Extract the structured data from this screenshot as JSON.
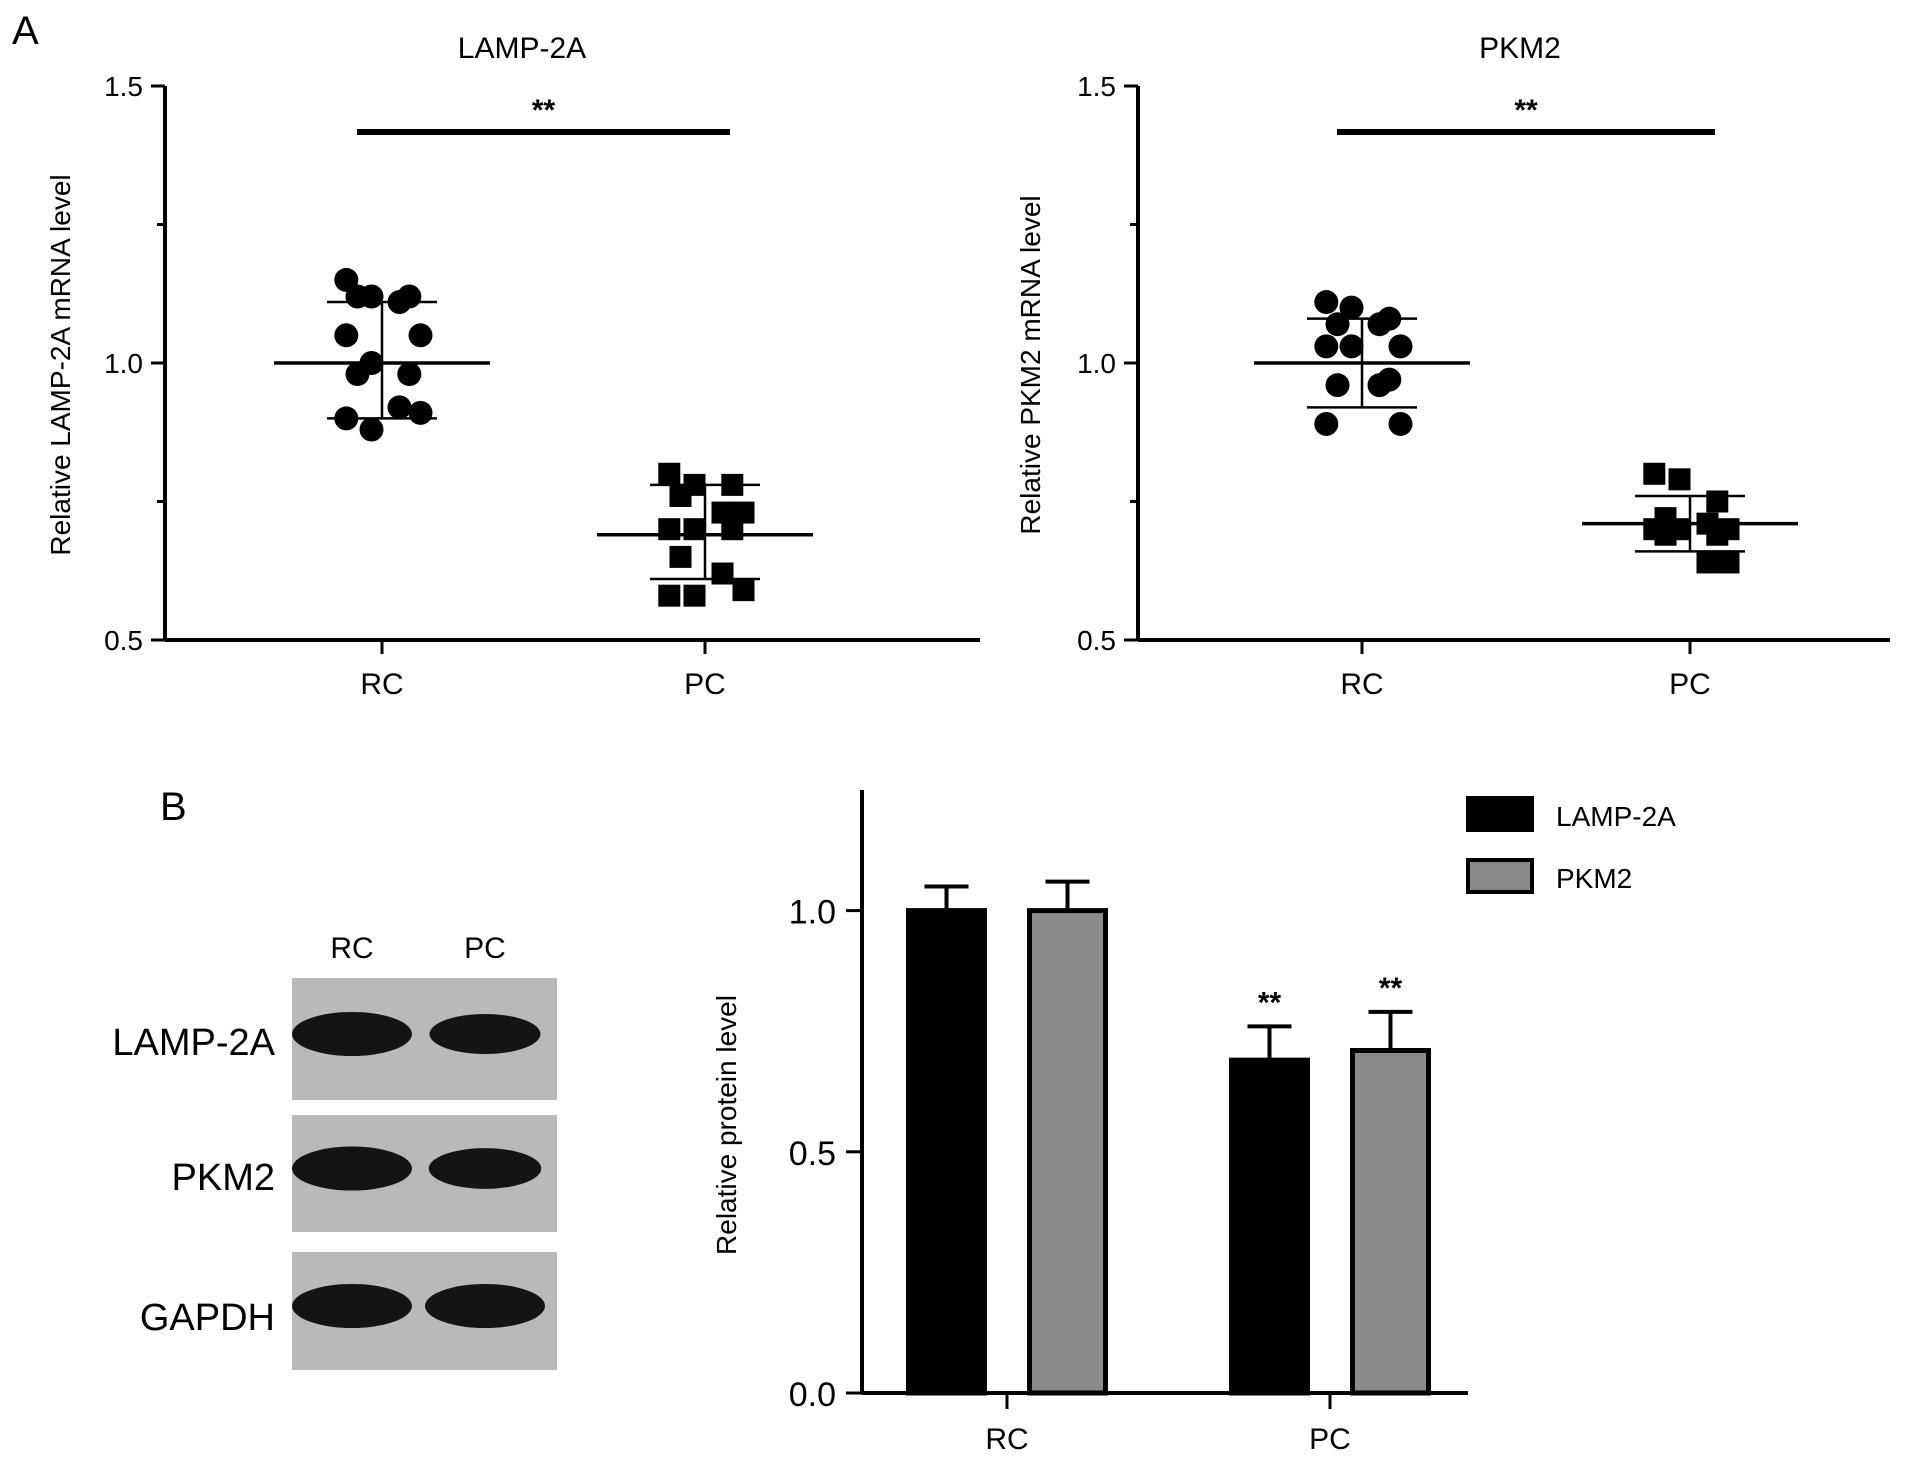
{
  "panels": {
    "a": "A",
    "b": "B"
  },
  "chart_data": [
    {
      "type": "scatter",
      "title": "LAMP-2A",
      "xlabel": "",
      "ylabel": "Relative LAMP-2A mRNA level",
      "ylim": [
        0.5,
        1.5
      ],
      "yticks": [
        "0.5",
        "1.0",
        "1.5"
      ],
      "categories": [
        "RC",
        "PC"
      ],
      "groups": [
        {
          "category": "RC",
          "marker": "circle",
          "values": [
            1.15,
            1.12,
            1.12,
            1.11,
            1.12,
            1.05,
            1.05,
            1.0,
            0.98,
            0.98,
            0.91,
            0.92,
            0.9,
            0.88
          ],
          "mean": 1.0,
          "sd_low": 0.9,
          "sd_high": 1.11
        },
        {
          "category": "PC",
          "marker": "square",
          "values": [
            0.8,
            0.78,
            0.78,
            0.76,
            0.73,
            0.73,
            0.7,
            0.7,
            0.7,
            0.65,
            0.62,
            0.59,
            0.58,
            0.58
          ],
          "mean": 0.69,
          "sd_low": 0.61,
          "sd_high": 0.78
        }
      ],
      "significance": "**",
      "grid": false
    },
    {
      "type": "scatter",
      "title": "PKM2",
      "xlabel": "",
      "ylabel": "Relative PKM2 mRNA level",
      "ylim": [
        0.5,
        1.5
      ],
      "yticks": [
        "0.5",
        "1.0",
        "1.5"
      ],
      "categories": [
        "RC",
        "PC"
      ],
      "groups": [
        {
          "category": "RC",
          "marker": "circle",
          "values": [
            1.11,
            1.1,
            1.07,
            1.07,
            1.08,
            1.03,
            1.03,
            1.03,
            0.97,
            0.96,
            0.96,
            0.89,
            0.89
          ],
          "mean": 1.0,
          "sd_low": 0.92,
          "sd_high": 1.08
        },
        {
          "category": "PC",
          "marker": "square",
          "values": [
            0.8,
            0.79,
            0.75,
            0.72,
            0.71,
            0.7,
            0.7,
            0.7,
            0.69,
            0.69,
            0.64,
            0.64
          ],
          "mean": 0.71,
          "sd_low": 0.66,
          "sd_high": 0.76
        }
      ],
      "significance": "**",
      "grid": false
    },
    {
      "type": "bar",
      "title": "",
      "xlabel": "",
      "ylabel": "Relative protein level",
      "ylim": [
        0.0,
        1.25
      ],
      "yticks": [
        "0.0",
        "0.5",
        "1.0"
      ],
      "categories": [
        "RC",
        "PC"
      ],
      "series": [
        {
          "name": "LAMP-2A",
          "color": "#000000",
          "values": [
            1.0,
            0.69
          ],
          "errors": [
            0.05,
            0.07
          ]
        },
        {
          "name": "PKM2",
          "color": "#8a8a8a",
          "values": [
            1.0,
            0.71
          ],
          "errors": [
            0.06,
            0.08
          ]
        }
      ],
      "annotations": [
        {
          "category": "PC",
          "series": "LAMP-2A",
          "text": "**"
        },
        {
          "category": "PC",
          "series": "PKM2",
          "text": "**"
        }
      ],
      "legend": "top-right",
      "grid": false
    }
  ],
  "blot": {
    "lanes": [
      "RC",
      "PC"
    ],
    "rows": [
      {
        "label": "LAMP-2A",
        "intensity": [
          1.0,
          0.7
        ]
      },
      {
        "label": "PKM2",
        "intensity": [
          1.0,
          0.75
        ]
      },
      {
        "label": "GAPDH",
        "intensity": [
          1.0,
          1.0
        ]
      }
    ]
  }
}
